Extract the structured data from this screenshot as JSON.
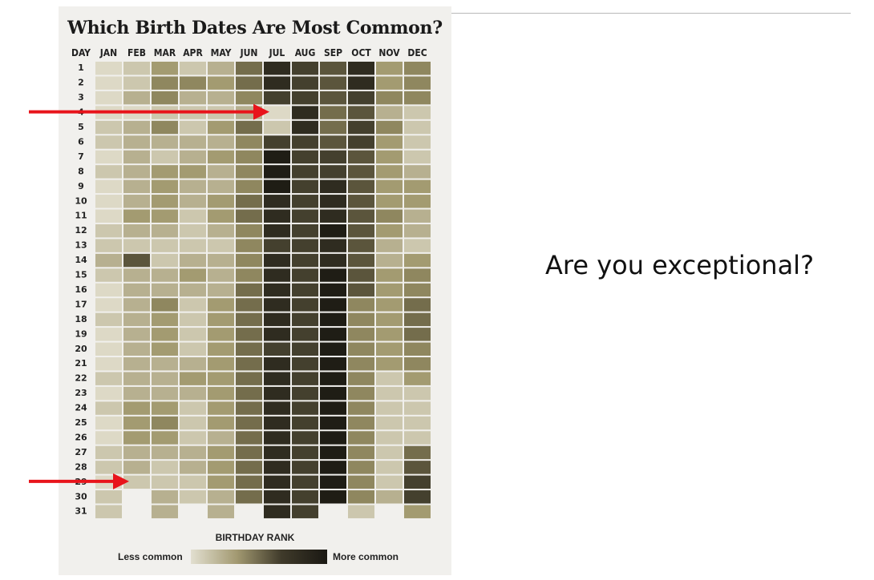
{
  "slide": {
    "question": "Are you exceptional?"
  },
  "chart_data": {
    "type": "heatmap",
    "title": "Which Birth Dates Are Most Common?",
    "corner_label": "DAY",
    "columns": [
      "JAN",
      "FEB",
      "MAR",
      "APR",
      "MAY",
      "JUN",
      "JUL",
      "AUG",
      "SEP",
      "OCT",
      "NOV",
      "DEC"
    ],
    "rows": [
      "1",
      "2",
      "3",
      "4",
      "5",
      "6",
      "7",
      "8",
      "9",
      "10",
      "11",
      "12",
      "13",
      "14",
      "15",
      "16",
      "17",
      "18",
      "19",
      "20",
      "21",
      "22",
      "23",
      "24",
      "25",
      "26",
      "27",
      "28",
      "29",
      "30",
      "31"
    ],
    "scale_note": "values are estimated relative commonness levels 0 (less common) to 9 (more common)",
    "values": [
      [
        0,
        1,
        3,
        1,
        2,
        5,
        8,
        7,
        6,
        8,
        3,
        4
      ],
      [
        0,
        1,
        4,
        4,
        3,
        5,
        8,
        7,
        6,
        8,
        3,
        4
      ],
      [
        0,
        2,
        4,
        2,
        2,
        4,
        7,
        7,
        6,
        7,
        4,
        4
      ],
      [
        0,
        0,
        1,
        1,
        1,
        2,
        0,
        8,
        5,
        6,
        2,
        1
      ],
      [
        1,
        2,
        4,
        1,
        3,
        5,
        1,
        8,
        5,
        7,
        4,
        1
      ],
      [
        1,
        2,
        2,
        2,
        2,
        4,
        7,
        7,
        6,
        7,
        3,
        1
      ],
      [
        0,
        2,
        1,
        2,
        3,
        4,
        9,
        7,
        7,
        6,
        3,
        1
      ],
      [
        1,
        2,
        3,
        3,
        2,
        4,
        9,
        7,
        7,
        6,
        3,
        2
      ],
      [
        0,
        2,
        3,
        2,
        2,
        4,
        9,
        7,
        8,
        6,
        3,
        3
      ],
      [
        0,
        2,
        3,
        2,
        3,
        5,
        8,
        7,
        8,
        6,
        3,
        3
      ],
      [
        0,
        3,
        3,
        1,
        3,
        5,
        8,
        7,
        8,
        6,
        4,
        2
      ],
      [
        1,
        2,
        2,
        1,
        2,
        4,
        8,
        7,
        9,
        6,
        3,
        2
      ],
      [
        1,
        1,
        1,
        1,
        1,
        4,
        7,
        7,
        8,
        6,
        2,
        1
      ],
      [
        2,
        6,
        1,
        2,
        2,
        4,
        8,
        7,
        8,
        6,
        2,
        3
      ],
      [
        1,
        2,
        2,
        3,
        2,
        4,
        8,
        7,
        9,
        6,
        3,
        4
      ],
      [
        0,
        2,
        2,
        2,
        2,
        5,
        8,
        7,
        9,
        6,
        3,
        4
      ],
      [
        0,
        2,
        4,
        1,
        3,
        5,
        8,
        7,
        9,
        4,
        3,
        5
      ],
      [
        1,
        2,
        3,
        1,
        3,
        5,
        8,
        7,
        9,
        4,
        3,
        5
      ],
      [
        0,
        2,
        3,
        1,
        3,
        5,
        8,
        7,
        9,
        4,
        3,
        5
      ],
      [
        0,
        2,
        3,
        1,
        3,
        5,
        7,
        7,
        9,
        4,
        3,
        4
      ],
      [
        0,
        2,
        2,
        2,
        3,
        5,
        8,
        7,
        9,
        4,
        3,
        4
      ],
      [
        1,
        2,
        2,
        3,
        3,
        5,
        8,
        7,
        9,
        4,
        1,
        3
      ],
      [
        0,
        2,
        2,
        2,
        3,
        5,
        8,
        7,
        9,
        4,
        1,
        1
      ],
      [
        1,
        3,
        3,
        1,
        3,
        5,
        8,
        7,
        9,
        4,
        1,
        1
      ],
      [
        0,
        3,
        4,
        1,
        3,
        5,
        8,
        7,
        9,
        4,
        1,
        1
      ],
      [
        0,
        3,
        3,
        1,
        2,
        5,
        8,
        7,
        9,
        4,
        1,
        1
      ],
      [
        1,
        2,
        2,
        2,
        3,
        5,
        8,
        7,
        9,
        4,
        1,
        5
      ],
      [
        1,
        2,
        1,
        2,
        3,
        5,
        8,
        7,
        9,
        4,
        1,
        6
      ],
      [
        0,
        1,
        1,
        1,
        3,
        5,
        8,
        7,
        9,
        4,
        1,
        7
      ],
      [
        1,
        null,
        2,
        1,
        2,
        5,
        8,
        7,
        9,
        4,
        2,
        7
      ],
      [
        1,
        null,
        2,
        null,
        2,
        null,
        8,
        7,
        null,
        1,
        null,
        3
      ]
    ],
    "legend": {
      "title": "BIRTHDAY RANK",
      "low_label": "Less common",
      "high_label": "More common"
    },
    "annotations": [
      {
        "type": "arrow",
        "color": "#e8141b",
        "points_to": "JUL 4"
      },
      {
        "type": "arrow",
        "color": "#e8141b",
        "points_to": "FEB 29"
      }
    ],
    "palette": [
      "#ddd9c6",
      "#ccc7ae",
      "#b7b090",
      "#a39b71",
      "#8f875f",
      "#746d4c",
      "#5b553c",
      "#44402e",
      "#2f2c20",
      "#1f1d15"
    ]
  }
}
